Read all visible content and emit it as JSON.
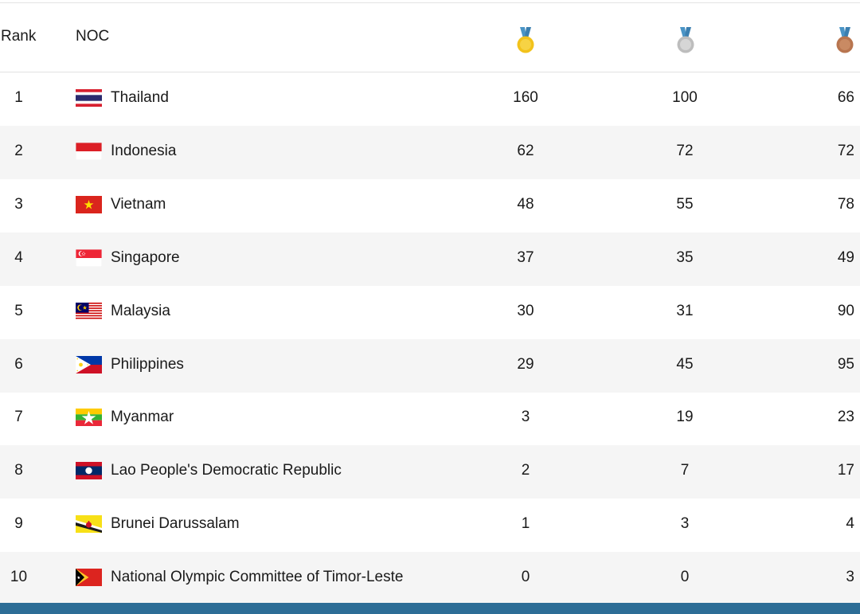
{
  "header": {
    "rank_label": "Rank",
    "noc_label": "NOC",
    "gold_icon": "gold-medal-icon",
    "silver_icon": "silver-medal-icon",
    "bronze_icon": "bronze-medal-icon"
  },
  "colors": {
    "gold": "#f2c21b",
    "silver": "#c8c8c8",
    "bronze": "#b8754f",
    "ribbon": "#4a94c6",
    "row_alt": "#f5f5f5",
    "bottom_bar": "#2d6d96"
  },
  "rows": [
    {
      "rank": "1",
      "name": "Thailand",
      "flag": "thailand-flag-icon",
      "gold": "160",
      "silver": "100",
      "bronze": "66"
    },
    {
      "rank": "2",
      "name": "Indonesia",
      "flag": "indonesia-flag-icon",
      "gold": "62",
      "silver": "72",
      "bronze": "72"
    },
    {
      "rank": "3",
      "name": "Vietnam",
      "flag": "vietnam-flag-icon",
      "gold": "48",
      "silver": "55",
      "bronze": "78"
    },
    {
      "rank": "4",
      "name": "Singapore",
      "flag": "singapore-flag-icon",
      "gold": "37",
      "silver": "35",
      "bronze": "49"
    },
    {
      "rank": "5",
      "name": "Malaysia",
      "flag": "malaysia-flag-icon",
      "gold": "30",
      "silver": "31",
      "bronze": "90"
    },
    {
      "rank": "6",
      "name": "Philippines",
      "flag": "philippines-flag-icon",
      "gold": "29",
      "silver": "45",
      "bronze": "95"
    },
    {
      "rank": "7",
      "name": "Myanmar",
      "flag": "myanmar-flag-icon",
      "gold": "3",
      "silver": "19",
      "bronze": "23"
    },
    {
      "rank": "8",
      "name": "Lao People's Democratic Republic",
      "flag": "laos-flag-icon",
      "gold": "2",
      "silver": "7",
      "bronze": "17"
    },
    {
      "rank": "9",
      "name": "Brunei Darussalam",
      "flag": "brunei-flag-icon",
      "gold": "1",
      "silver": "3",
      "bronze": "4"
    },
    {
      "rank": "10",
      "name": "National Olympic Committee of Timor-Leste",
      "flag": "timor-leste-flag-icon",
      "gold": "0",
      "silver": "0",
      "bronze": "3"
    }
  ]
}
